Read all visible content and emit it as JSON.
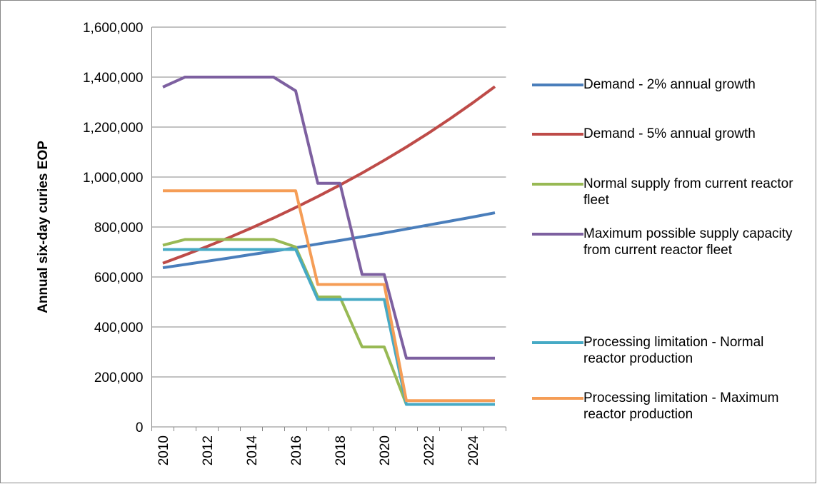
{
  "chart_data": {
    "type": "line",
    "y_label": "Annual six-day curies EOP",
    "categories": [
      "2010",
      null,
      "2012",
      null,
      "2014",
      null,
      "2016",
      null,
      "2018",
      null,
      "2020",
      null,
      "2022",
      null,
      "2024",
      null
    ],
    "ylim": [
      0,
      1600000
    ],
    "yticks": [
      0,
      {
        "value": 200000,
        "label": "200,000"
      },
      {
        "value": 400000,
        "label": "400,000"
      },
      {
        "value": 600000,
        "label": "600,000"
      },
      {
        "value": 800000,
        "label": "800,000"
      },
      {
        "value": 1000000,
        "label": "1,000,000"
      },
      {
        "value": 1200000,
        "label": "1,200,000"
      },
      {
        "value": 1400000,
        "label": "1,400,000"
      },
      {
        "value": 1600000,
        "label": "1,600,000"
      }
    ],
    "grid": true,
    "legend": "right",
    "series": [
      {
        "name": "Demand - 2% annual growth",
        "color": "#4a7ebb",
        "values": [
          637000,
          650000,
          663000,
          676000,
          690000,
          703000,
          717000,
          732000,
          746000,
          761000,
          776000,
          792000,
          808000,
          824000,
          840000,
          857000
        ]
      },
      {
        "name": "Demand - 5% annual growth",
        "color": "#be4b48",
        "values": [
          655000,
          688000,
          722000,
          758000,
          796000,
          836000,
          878000,
          922000,
          968000,
          1016000,
          1067000,
          1120000,
          1176000,
          1235000,
          1297000,
          1362000
        ]
      },
      {
        "name": "Normal supply from current reactor fleet",
        "color": "#98b954",
        "values": [
          727000,
          750000,
          750000,
          750000,
          750000,
          750000,
          720000,
          520000,
          520000,
          320000,
          320000,
          90000,
          90000,
          90000,
          90000,
          90000
        ]
      },
      {
        "name": "Maximum possible supply capacity from current reactor fleet",
        "color": "#7d60a0",
        "values": [
          1360000,
          1400000,
          1400000,
          1400000,
          1400000,
          1400000,
          1345000,
          975000,
          975000,
          610000,
          610000,
          275000,
          275000,
          275000,
          275000,
          275000
        ]
      },
      {
        "name": "Processing limitation - Normal reactor production",
        "color": "#46aac5",
        "values": [
          710000,
          710000,
          710000,
          710000,
          710000,
          710000,
          710000,
          510000,
          510000,
          510000,
          510000,
          90000,
          90000,
          90000,
          90000,
          90000
        ]
      },
      {
        "name": "Processing limitation - Maximum reactor production",
        "color": "#f59d56",
        "values": [
          945000,
          945000,
          945000,
          945000,
          945000,
          945000,
          945000,
          570000,
          570000,
          570000,
          570000,
          105000,
          105000,
          105000,
          105000,
          105000
        ]
      }
    ]
  }
}
